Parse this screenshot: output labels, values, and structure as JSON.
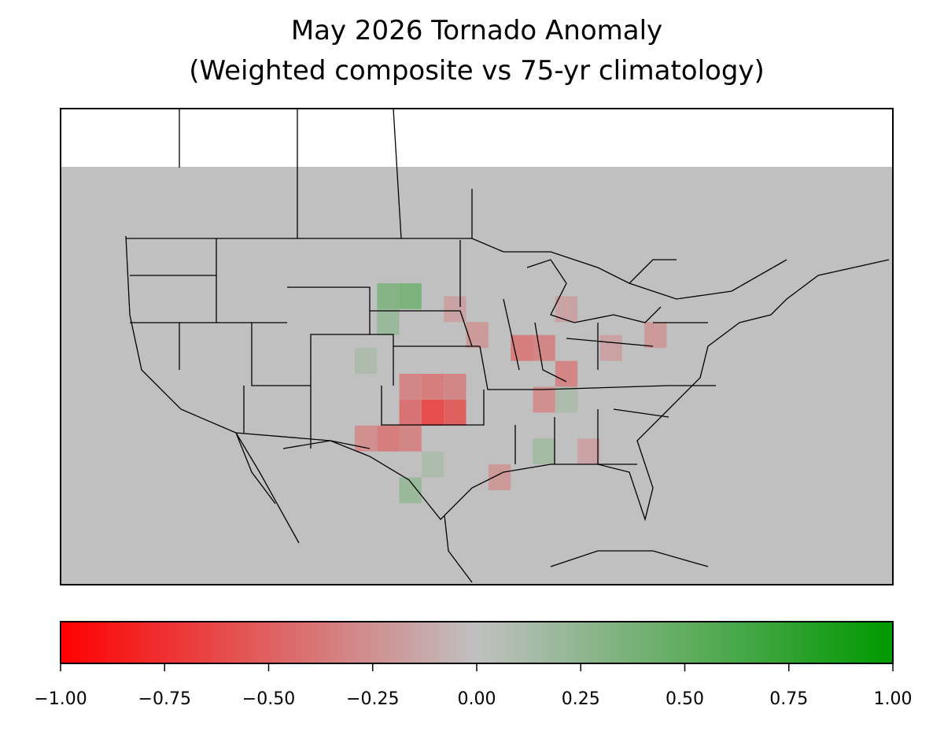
{
  "chart_data": {
    "type": "grid-map",
    "title": "May 2026 Tornado Anomaly",
    "subtitle": "(Weighted composite vs 75-yr climatology)",
    "xlim": [
      -130.4,
      -55.7
    ],
    "ylim": [
      22.2,
      59
    ],
    "data_top_lat": 54.5,
    "background_color": "#c0c0c0",
    "colormap": [
      "#ff0000",
      "#c0c0c0",
      "#009900"
    ],
    "colorbar_lim": [
      -1,
      1
    ],
    "colorbar_ticks": [
      {
        "value": -1,
        "label": "−1.00"
      },
      {
        "value": -0.75,
        "label": "−0.75"
      },
      {
        "value": -0.5,
        "label": "−0.50"
      },
      {
        "value": -0.25,
        "label": "−0.25"
      },
      {
        "value": 0,
        "label": "0.00"
      },
      {
        "value": 0.25,
        "label": "0.25"
      },
      {
        "value": 0.5,
        "label": "0.50"
      },
      {
        "value": 0.75,
        "label": "0.75"
      },
      {
        "value": 1,
        "label": "1.00"
      }
    ],
    "cells": [
      {
        "lon": -97,
        "lat": 35.5,
        "value": -0.6
      },
      {
        "lon": -95,
        "lat": 35.5,
        "value": -0.5
      },
      {
        "lon": -99,
        "lat": 35.5,
        "value": -0.4
      },
      {
        "lon": -97,
        "lat": 37.5,
        "value": -0.35
      },
      {
        "lon": -99,
        "lat": 37.5,
        "value": -0.3
      },
      {
        "lon": -101,
        "lat": 33.5,
        "value": -0.35
      },
      {
        "lon": -99,
        "lat": 33.5,
        "value": -0.3
      },
      {
        "lon": -103,
        "lat": 33.5,
        "value": -0.25
      },
      {
        "lon": -95,
        "lat": 37.5,
        "value": -0.3
      },
      {
        "lon": -89,
        "lat": 40.5,
        "value": -0.35
      },
      {
        "lon": -87,
        "lat": 40.5,
        "value": -0.3
      },
      {
        "lon": -85,
        "lat": 38.5,
        "value": -0.3
      },
      {
        "lon": -87,
        "lat": 36.5,
        "value": -0.25
      },
      {
        "lon": -93,
        "lat": 41.5,
        "value": -0.2
      },
      {
        "lon": -95,
        "lat": 43.5,
        "value": -0.15
      },
      {
        "lon": -85,
        "lat": 43.5,
        "value": -0.15
      },
      {
        "lon": -81,
        "lat": 40.5,
        "value": -0.15
      },
      {
        "lon": -77,
        "lat": 41.5,
        "value": -0.2
      },
      {
        "lon": -91,
        "lat": 30.5,
        "value": -0.2
      },
      {
        "lon": -83,
        "lat": 32.5,
        "value": -0.15
      },
      {
        "lon": -101,
        "lat": 44.5,
        "value": 0.3
      },
      {
        "lon": -99,
        "lat": 44.5,
        "value": 0.35
      },
      {
        "lon": -101,
        "lat": 42.5,
        "value": 0.2
      },
      {
        "lon": -99,
        "lat": 29.5,
        "value": 0.2
      },
      {
        "lon": -97,
        "lat": 31.5,
        "value": 0.1
      },
      {
        "lon": -87,
        "lat": 32.5,
        "value": 0.15
      },
      {
        "lon": -85,
        "lat": 36.5,
        "value": 0.1
      },
      {
        "lon": -103,
        "lat": 39.5,
        "value": 0.1
      }
    ]
  }
}
